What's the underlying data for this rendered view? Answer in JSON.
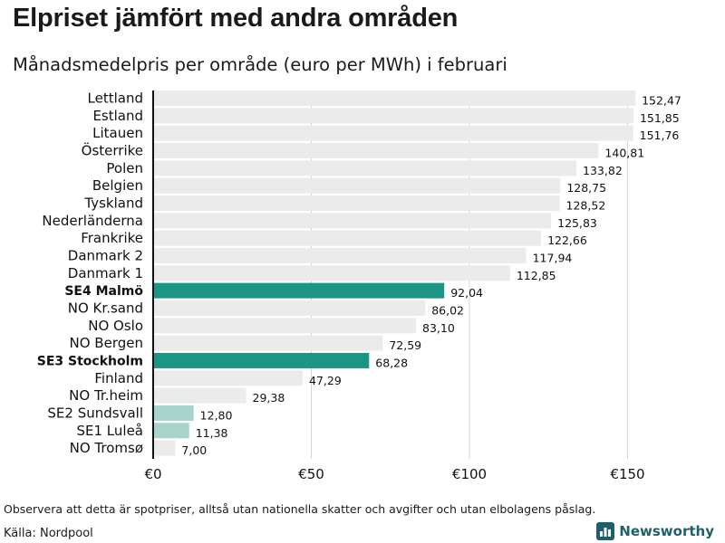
{
  "header": {
    "title": "Elpriset jämfört med andra områden",
    "subtitle": "Månadsmedelpris per område (euro per MWh) i februari"
  },
  "footer": {
    "note": "Observera att detta är spotpriser, alltså utan nationella skatter och avgifter och utan elbolagens påslag.",
    "source": "Källa: Nordpool",
    "brand": "Newsworthy"
  },
  "colors": {
    "bar_default": "#ebebeb",
    "bar_highlight": "#1c9585",
    "bar_secondary": "#a8d4cc",
    "grid": "#d6d6d6",
    "axis": "#111111",
    "brand": "#1f5f6b"
  },
  "chart_data": {
    "type": "bar",
    "orientation": "horizontal",
    "title": "Elpriset jämfört med andra områden",
    "subtitle": "Månadsmedelpris per område (euro per MWh) i februari",
    "xlabel": "",
    "ylabel": "",
    "xlim": [
      0,
      175
    ],
    "grid": true,
    "x_ticks": [
      {
        "value": 0,
        "label": "€0"
      },
      {
        "value": 50,
        "label": "€50"
      },
      {
        "value": 100,
        "label": "€100"
      },
      {
        "value": 150,
        "label": "€150"
      }
    ],
    "categories": [
      "Lettland",
      "Estland",
      "Litauen",
      "Österrike",
      "Polen",
      "Belgien",
      "Tyskland",
      "Nederländerna",
      "Frankrike",
      "Danmark  2",
      "Danmark  1",
      "SE4 Malmö",
      "NO Kr.sand",
      "NO Oslo",
      "NO Bergen",
      "SE3 Stockholm",
      "Finland",
      "NO Tr.heim",
      "SE2  Sundsvall",
      "SE1  Luleå",
      "NO Tromsø"
    ],
    "values": [
      152.47,
      151.85,
      151.76,
      140.81,
      133.82,
      128.75,
      128.52,
      125.83,
      122.66,
      117.94,
      112.85,
      92.04,
      86.02,
      83.1,
      72.59,
      68.28,
      47.29,
      29.38,
      12.8,
      11.38,
      7.0
    ],
    "value_labels": [
      "152,47",
      "151,85",
      "151,76",
      "140,81",
      "133,82",
      "128,75",
      "128,52",
      "125,83",
      "122,66",
      "117,94",
      "112,85",
      "92,04",
      "86,02",
      "83,10",
      "72,59",
      "68,28",
      "47,29",
      "29,38",
      "12,80",
      "11,38",
      "7,00"
    ],
    "highlight": [
      "default",
      "default",
      "default",
      "default",
      "default",
      "default",
      "default",
      "default",
      "default",
      "default",
      "default",
      "highlight",
      "default",
      "default",
      "default",
      "highlight",
      "default",
      "default",
      "secondary",
      "secondary",
      "default"
    ]
  }
}
